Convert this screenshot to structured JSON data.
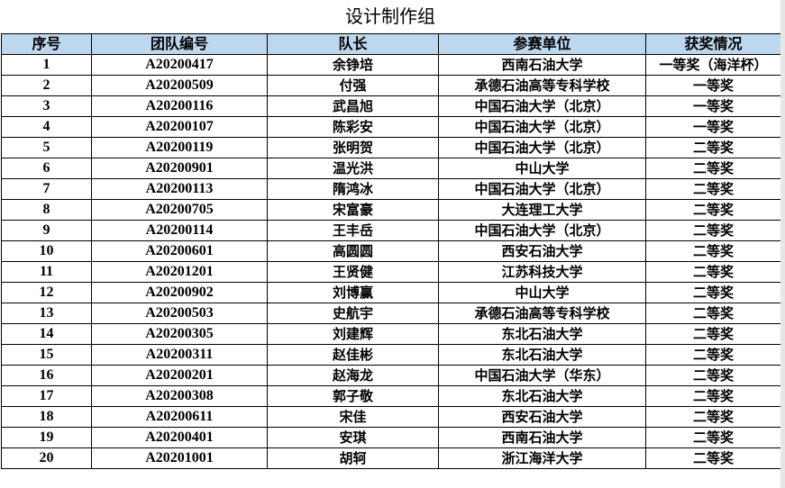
{
  "title": "设计制作组",
  "columns": [
    "序号",
    "团队编号",
    "队长",
    "参赛单位",
    "获奖情况"
  ],
  "rows": [
    [
      "1",
      "A20200417",
      "余铮培",
      "西南石油大学",
      "一等奖（海洋杯）"
    ],
    [
      "2",
      "A20200509",
      "付强",
      "承德石油高等专科学校",
      "一等奖"
    ],
    [
      "3",
      "A20200116",
      "武昌旭",
      "中国石油大学（北京）",
      "一等奖"
    ],
    [
      "4",
      "A20200107",
      "陈彩安",
      "中国石油大学（北京）",
      "一等奖"
    ],
    [
      "5",
      "A20200119",
      "张明贺",
      "中国石油大学（北京）",
      "二等奖"
    ],
    [
      "6",
      "A20200901",
      "温光洪",
      "中山大学",
      "二等奖"
    ],
    [
      "7",
      "A20200113",
      "隋鸿冰",
      "中国石油大学（北京）",
      "二等奖"
    ],
    [
      "8",
      "A20200705",
      "宋富豪",
      "大连理工大学",
      "二等奖"
    ],
    [
      "9",
      "A20200114",
      "王丰岳",
      "中国石油大学（北京）",
      "二等奖"
    ],
    [
      "10",
      "A20200601",
      "高圆圆",
      "西安石油大学",
      "二等奖"
    ],
    [
      "11",
      "A20201201",
      "王贤健",
      "江苏科技大学",
      "二等奖"
    ],
    [
      "12",
      "A20200902",
      "刘博赢",
      "中山大学",
      "二等奖"
    ],
    [
      "13",
      "A20200503",
      "史航宇",
      "承德石油高等专科学校",
      "二等奖"
    ],
    [
      "14",
      "A20200305",
      "刘建辉",
      "东北石油大学",
      "二等奖"
    ],
    [
      "15",
      "A20200311",
      "赵佳彬",
      "东北石油大学",
      "二等奖"
    ],
    [
      "16",
      "A20200201",
      "赵海龙",
      "中国石油大学（华东）",
      "二等奖"
    ],
    [
      "17",
      "A20200308",
      "郭子敬",
      "东北石油大学",
      "二等奖"
    ],
    [
      "18",
      "A20200611",
      "宋佳",
      "西安石油大学",
      "二等奖"
    ],
    [
      "19",
      "A20200401",
      "安琪",
      "西南石油大学",
      "二等奖"
    ],
    [
      "20",
      "A20201001",
      "胡轲",
      "浙江海洋大学",
      "二等奖"
    ]
  ],
  "colors": {
    "header_bg": "#bdd7ee"
  }
}
